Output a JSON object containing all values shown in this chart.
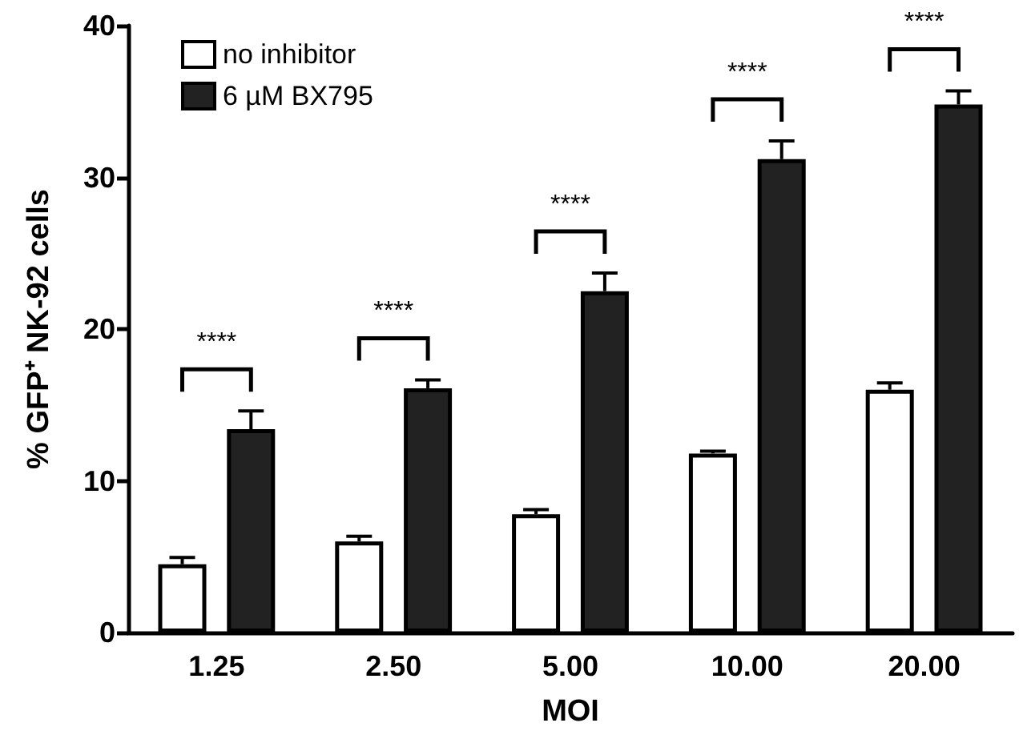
{
  "chart_data": {
    "type": "bar",
    "categories": [
      "1.25",
      "2.50",
      "5.00",
      "10.00",
      "20.00"
    ],
    "xlabel": "MOI",
    "ylabel": "% GFP⁺ NK-92 cells",
    "series": [
      {
        "name": "no inhibitor",
        "color": "#ffffff",
        "values": [
          4.5,
          6.0,
          7.8,
          11.8,
          16.0
        ],
        "errors": [
          0.45,
          0.35,
          0.3,
          0.15,
          0.45
        ]
      },
      {
        "name": "6 µM BX795",
        "color": "#222222",
        "values": [
          13.4,
          16.1,
          22.5,
          31.2,
          34.8
        ],
        "errors": [
          1.2,
          0.55,
          1.2,
          1.2,
          0.9
        ]
      }
    ],
    "ylim": [
      0,
      40
    ],
    "yticks": [
      0,
      10,
      20,
      30,
      40
    ],
    "grid": false,
    "legend": "top left",
    "annotations": [
      "****",
      "****",
      "****",
      "****",
      "****"
    ]
  }
}
